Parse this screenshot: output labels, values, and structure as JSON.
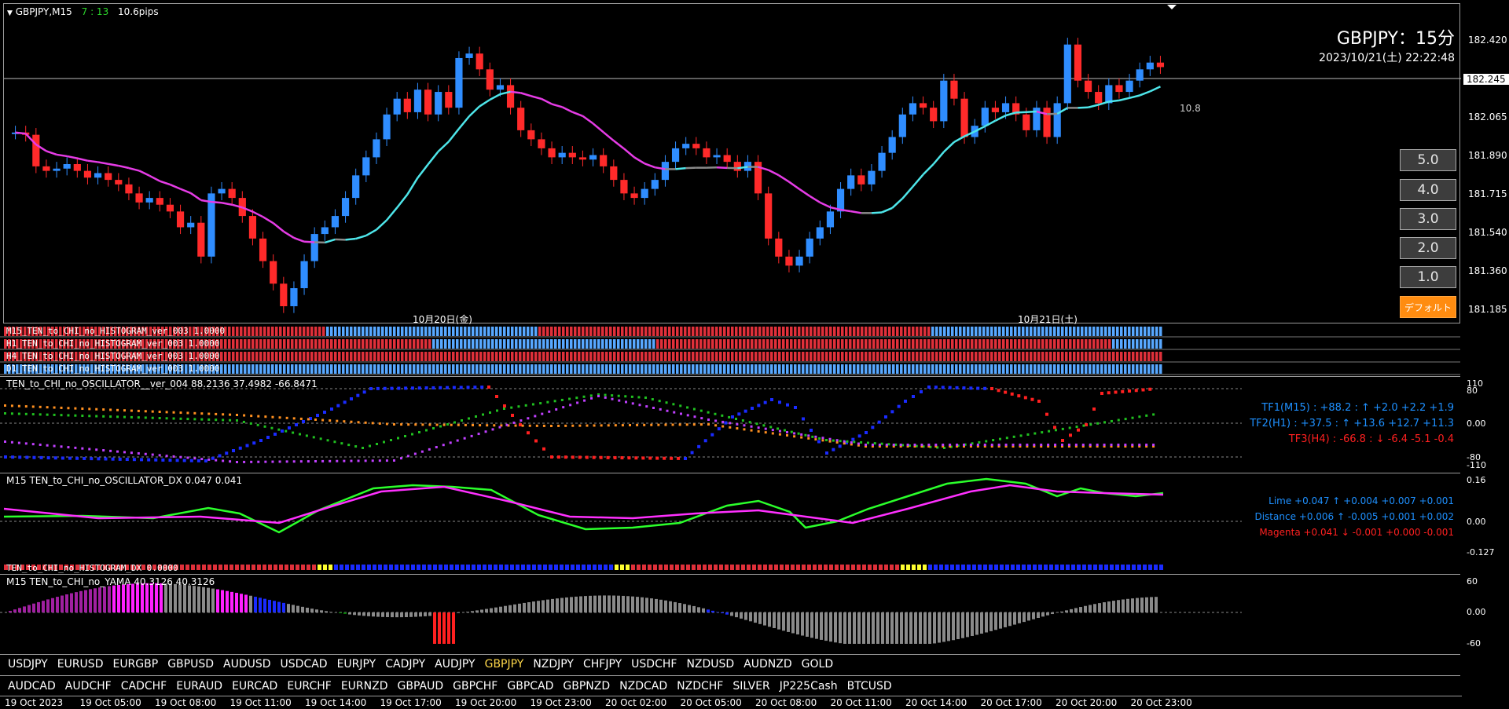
{
  "header": {
    "symbol_tf": "GBPJPY,M15",
    "countdown": "7 : 13",
    "spread": "10.6pips"
  },
  "overlay": {
    "pair_title": "GBPJPY：15分",
    "datetime": "2023/10/21(土) 22:22:48",
    "ma_label": "10.8"
  },
  "price_axis": [
    "182.420",
    "182.065",
    "181.890",
    "181.715",
    "181.540",
    "181.360",
    "181.185"
  ],
  "current_price": "182.245",
  "date_labels": [
    "10月20日(金)",
    "10月21日(土)"
  ],
  "buttons": {
    "b5": "5.0",
    "b4": "4.0",
    "b3": "3.0",
    "b2": "2.0",
    "b1": "1.0",
    "default": "デフォルト"
  },
  "histogram_labels": {
    "m15": "M15_TEN_to_CHI_no_HISTOGRAM_ver_003 1.0000",
    "h1": "H1_TEN_to_CHI_no_HISTOGRAM_ver_003 1.0000",
    "h4": "H4_TEN_to_CHI_no_HISTOGRAM_ver_003 1.0000",
    "d1": "D1_TEN_to_CHI_no_HISTOGRAM_ver_003 1.0000"
  },
  "oscillator": {
    "title": "TEN_to_CHI_no_OSCILLATOR__ver_004 88.2136 37.4982 -66.8471",
    "axis": [
      "110",
      "80",
      "0.00",
      "-80",
      "-110"
    ],
    "tf1": "TF1(M15) : +88.2 : ↑ +2.0 +2.2 +1.9",
    "tf2": "TF2(H1) : +37.5 : ↑ +13.6 +12.7 +11.3",
    "tf3": "TF3(H4) : -66.8 : ↓ -6.4 -5.1 -0.4",
    "colors": {
      "tf1": "#1e90ff",
      "tf2": "#1e90ff",
      "tf3": "#ff2020"
    }
  },
  "dx": {
    "title": "M15 TEN_to_CHI_no_OSCILLATOR_DX  0.047 0.041",
    "axis": [
      "0.16",
      "0.00",
      "-0.127"
    ],
    "lime": "Lime +0.047 ↑ +0.004 +0.007 +0.001",
    "distance": "Distance +0.006 ↑ -0.005 +0.001 +0.002",
    "magenta": "Magenta +0.041 ↓ -0.001 +0.000 -0.001"
  },
  "hist_dx": {
    "title": "TEN_to_CHI_no_HISTOGRAM_DX 0.0000"
  },
  "yama": {
    "title": "M15  TEN_to_CHI_no_YAMA  40.3126 40.3126",
    "axis": [
      "60",
      "0.00",
      "-60"
    ]
  },
  "symbols_row1": [
    "USDJPY",
    "EURUSD",
    "EURGBP",
    "GBPUSD",
    "AUDUSD",
    "USDCAD",
    "EURJPY",
    "CADJPY",
    "AUDJPY",
    "GBPJPY",
    "NZDJPY",
    "CHFJPY",
    "USDCHF",
    "NZDUSD",
    "AUDNZD",
    "GOLD"
  ],
  "symbols_row2": [
    "AUDCAD",
    "AUDCHF",
    "CADCHF",
    "EURAUD",
    "EURCAD",
    "EURCHF",
    "EURNZD",
    "GBPAUD",
    "GBPCHF",
    "GBPCAD",
    "GBPNZD",
    "NZDCAD",
    "NZDCHF",
    "SILVER",
    "JP225Cash",
    "BTCUSD"
  ],
  "active_symbol": "GBPJPY",
  "time_axis": [
    "19 Oct 2023",
    "19 Oct 05:00",
    "19 Oct 08:00",
    "19 Oct 11:00",
    "19 Oct 14:00",
    "19 Oct 17:00",
    "19 Oct 20:00",
    "19 Oct 23:00",
    "20 Oct 02:00",
    "20 Oct 05:00",
    "20 Oct 08:00",
    "20 Oct 11:00",
    "20 Oct 14:00",
    "20 Oct 17:00",
    "20 Oct 20:00",
    "20 Oct 23:00"
  ],
  "chart_data": {
    "type": "candlestick",
    "symbol": "GBPJPY",
    "timeframe": "M15",
    "ylim": [
      181.12,
      182.54
    ],
    "closes": [
      181.97,
      181.96,
      181.82,
      181.8,
      181.81,
      181.83,
      181.8,
      181.77,
      181.79,
      181.76,
      181.74,
      181.7,
      181.66,
      181.68,
      181.65,
      181.62,
      181.55,
      181.57,
      181.42,
      181.7,
      181.72,
      181.68,
      181.6,
      181.5,
      181.4,
      181.3,
      181.2,
      181.28,
      181.4,
      181.52,
      181.55,
      181.6,
      181.68,
      181.78,
      181.86,
      181.94,
      182.05,
      182.12,
      182.06,
      182.16,
      182.05,
      182.15,
      182.08,
      182.3,
      182.32,
      182.25,
      182.16,
      182.18,
      182.08,
      181.98,
      181.94,
      181.9,
      181.86,
      181.88,
      181.86,
      181.85,
      181.87,
      181.82,
      181.76,
      181.7,
      181.68,
      181.72,
      181.76,
      181.84,
      181.9,
      181.92,
      181.9,
      181.86,
      181.87,
      181.84,
      181.8,
      181.84,
      181.7,
      181.5,
      181.42,
      181.38,
      181.42,
      181.5,
      181.55,
      181.62,
      181.72,
      181.78,
      181.74,
      181.8,
      181.88,
      181.95,
      182.05,
      182.1,
      182.08,
      182.02,
      182.2,
      182.12,
      181.95,
      182.0,
      182.08,
      182.06,
      182.1,
      182.05,
      181.98,
      182.08,
      181.95,
      182.1,
      182.36,
      182.2,
      182.15,
      182.1,
      182.18,
      182.15,
      182.2,
      182.25,
      182.28,
      182.26
    ]
  }
}
